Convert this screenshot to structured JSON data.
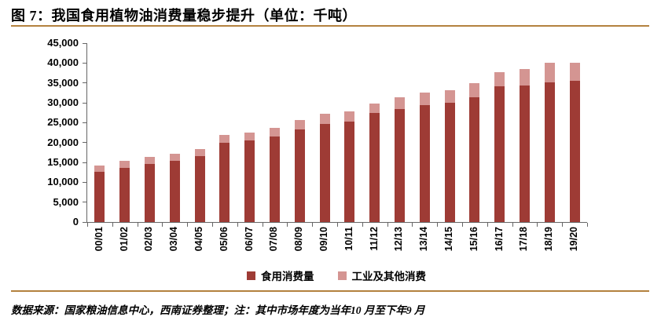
{
  "figure": {
    "title": "图 7：我国食用植物油消费量稳步提升（单位：千吨）",
    "footer": "数据来源：国家粮油信息中心，西南证券整理；注：其中市场年度为当年10 月至下年9 月"
  },
  "colors": {
    "rule": "#B3813E",
    "axis": "#666666",
    "text": "#000000",
    "food": "#9E3B35",
    "industrial": "#D49592"
  },
  "chart_data": {
    "type": "bar",
    "stacked": true,
    "title": "图 7：我国食用植物油消费量稳步提升（单位：千吨）",
    "unit": "千吨",
    "grid": false,
    "legend_position": "bottom",
    "categories": [
      "00/01",
      "01/02",
      "02/03",
      "03/04",
      "04/05",
      "05/06",
      "06/07",
      "07/08",
      "08/09",
      "09/10",
      "10/11",
      "11/12",
      "12/13",
      "13/14",
      "14/15",
      "15/16",
      "16/17",
      "17/18",
      "18/19",
      "19/20"
    ],
    "series": [
      {
        "name": "食用消费量",
        "color": "#9E3B35",
        "values": [
          12600,
          13550,
          14550,
          15350,
          16550,
          19900,
          20450,
          21600,
          23200,
          24600,
          25200,
          27450,
          28500,
          29350,
          29950,
          31450,
          34100,
          34400,
          35200,
          35600
        ]
      },
      {
        "name": "工业及其他消费",
        "color": "#D49592",
        "values": [
          1550,
          1800,
          1800,
          1750,
          1750,
          1950,
          2000,
          2250,
          2400,
          2650,
          2600,
          2450,
          2900,
          3100,
          3150,
          3500,
          3600,
          4150,
          4900,
          4500
        ]
      }
    ],
    "ylim": [
      0,
      45000
    ],
    "ytick_step": 5000,
    "ytick_labels": [
      "0",
      "5,000",
      "10,000",
      "15,000",
      "20,000",
      "25,000",
      "30,000",
      "35,000",
      "40,000",
      "45,000"
    ]
  }
}
